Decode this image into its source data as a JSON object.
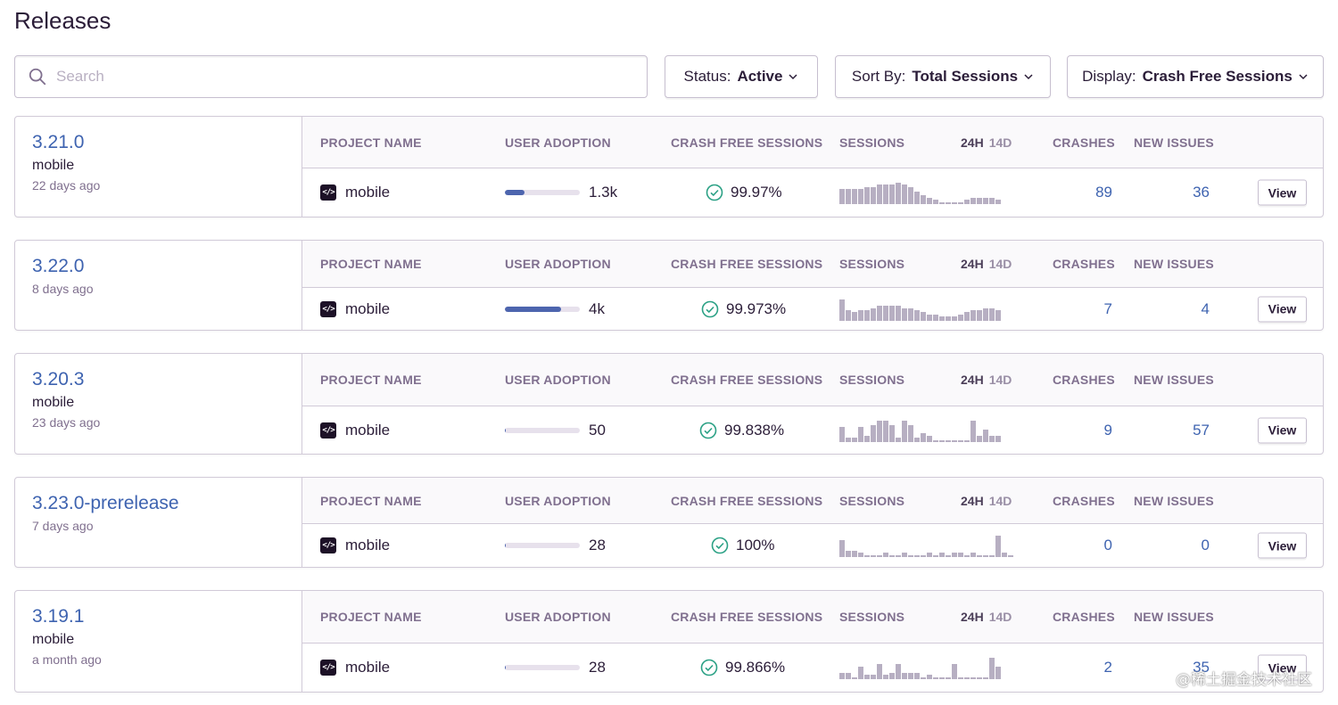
{
  "page": {
    "title": "Releases"
  },
  "search": {
    "placeholder": "Search",
    "value": ""
  },
  "filters": {
    "status": {
      "label": "Status:",
      "value": "Active"
    },
    "sort": {
      "label": "Sort By:",
      "value": "Total Sessions"
    },
    "display": {
      "label": "Display:",
      "value": "Crash Free Sessions"
    }
  },
  "columns": {
    "project": "PROJECT NAME",
    "adoption": "USER ADOPTION",
    "crash_free": "CRASH FREE SESSIONS",
    "sessions": "SESSIONS",
    "period_24h": "24H",
    "period_14d": "14D",
    "crashes": "CRASHES",
    "new_issues": "NEW ISSUES"
  },
  "view_label": "View",
  "colors": {
    "link": "#3e63b0",
    "adoption": "#4d65ae",
    "check": "#2ba185",
    "spark": "#b7afc2"
  },
  "releases": [
    {
      "version": "3.21.0",
      "project_label": "mobile",
      "date": "22 days ago",
      "project": "mobile",
      "adoption_text": "1.3k",
      "adoption_fraction": 0.26,
      "crash_free": "99.97%",
      "crashes": "89",
      "new_issues": "36",
      "sessions": [
        7,
        7,
        7,
        7,
        8,
        8,
        9,
        9,
        9,
        10,
        9,
        8,
        6,
        4,
        3,
        2,
        1,
        1,
        1,
        1,
        2,
        3,
        3,
        3,
        3,
        2
      ]
    },
    {
      "version": "3.22.0",
      "project_label": "",
      "date": "8 days ago",
      "project": "mobile",
      "adoption_text": "4k",
      "adoption_fraction": 0.75,
      "crash_free": "99.973%",
      "crashes": "7",
      "new_issues": "4",
      "sessions": [
        10,
        5,
        4,
        5,
        5,
        6,
        7,
        7,
        7,
        7,
        6,
        6,
        5,
        4,
        3,
        3,
        2,
        2,
        2,
        3,
        4,
        5,
        5,
        6,
        6,
        5
      ]
    },
    {
      "version": "3.20.3",
      "project_label": "mobile",
      "date": "23 days ago",
      "project": "mobile",
      "adoption_text": "50",
      "adoption_fraction": 0.01,
      "crash_free": "99.838%",
      "crashes": "9",
      "new_issues": "57",
      "sessions": [
        7,
        2,
        2,
        7,
        3,
        8,
        10,
        10,
        8,
        2,
        10,
        8,
        2,
        4,
        3,
        1,
        1,
        1,
        1,
        1,
        1,
        10,
        3,
        6,
        3,
        3
      ]
    },
    {
      "version": "3.23.0-prerelease",
      "project_label": "",
      "date": "7 days ago",
      "project": "mobile",
      "adoption_text": "28",
      "adoption_fraction": 0.01,
      "crash_free": "100%",
      "crashes": "0",
      "new_issues": "0",
      "sessions": [
        8,
        3,
        3,
        2,
        1,
        1,
        1,
        2,
        1,
        1,
        2,
        1,
        1,
        1,
        2,
        1,
        2,
        1,
        2,
        2,
        1,
        2,
        1,
        1,
        1,
        10,
        2,
        1
      ]
    },
    {
      "version": "3.19.1",
      "project_label": "mobile",
      "date": "a month ago",
      "project": "mobile",
      "adoption_text": "28",
      "adoption_fraction": 0.01,
      "crash_free": "99.866%",
      "crashes": "2",
      "new_issues": "35",
      "sessions": [
        3,
        3,
        1,
        6,
        2,
        2,
        7,
        2,
        3,
        7,
        3,
        3,
        3,
        1,
        2,
        1,
        1,
        1,
        7,
        1,
        1,
        1,
        1,
        1,
        10,
        6
      ]
    }
  ],
  "watermark": "@稀土掘金技术社区"
}
